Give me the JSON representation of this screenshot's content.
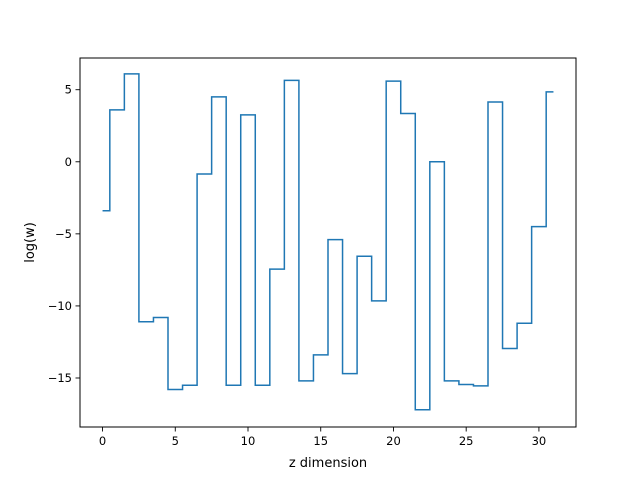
{
  "chart_data": {
    "type": "line",
    "drawstyle": "steps-mid",
    "title": "",
    "xlabel": "z dimension",
    "ylabel": "log(w)",
    "xlim": [
      -1.55,
      32.55
    ],
    "ylim": [
      -18.4,
      7.2
    ],
    "xticks": [
      0,
      5,
      10,
      15,
      20,
      25,
      30
    ],
    "yticks": [
      5,
      0,
      -5,
      -10,
      -15
    ],
    "grid": false,
    "series": [
      {
        "color": "#1f77b4",
        "x": [
          0,
          1,
          2,
          3,
          4,
          5,
          6,
          7,
          8,
          9,
          10,
          11,
          12,
          13,
          14,
          15,
          16,
          17,
          18,
          19,
          20,
          21,
          22,
          23,
          24,
          25,
          26,
          27,
          28,
          29,
          30,
          31
        ],
        "y": [
          -3.4,
          3.6,
          6.1,
          -11.1,
          -10.8,
          -15.8,
          -15.5,
          -0.85,
          4.5,
          -15.5,
          3.25,
          -15.5,
          -7.45,
          5.65,
          -15.2,
          -13.4,
          -5.4,
          -14.7,
          -6.55,
          -9.65,
          5.6,
          3.35,
          -17.2,
          0.0,
          -15.2,
          -15.45,
          -15.55,
          4.15,
          -12.95,
          -11.2,
          -4.5,
          4.85
        ]
      }
    ]
  }
}
